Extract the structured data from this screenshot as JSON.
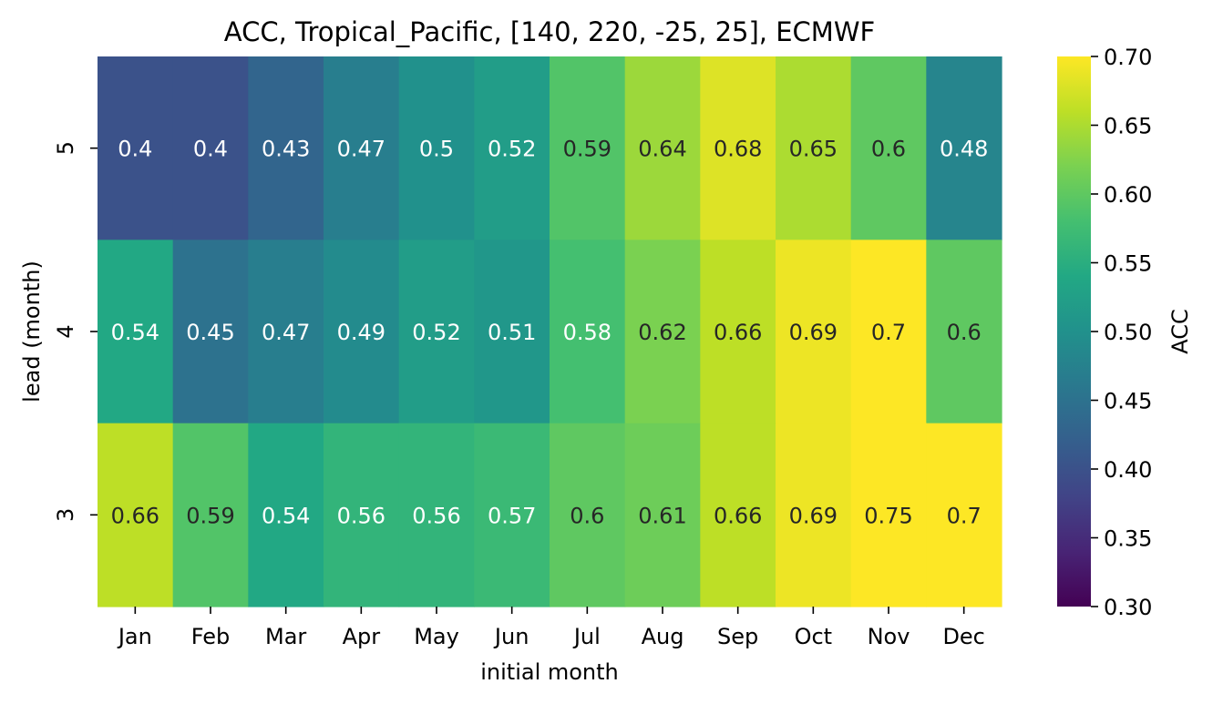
{
  "chart_data": {
    "type": "heatmap",
    "title": "ACC, Tropical_Pacific, [140, 220, -25, 25], ECMWF",
    "xlabel": "initial month",
    "ylabel": "lead (month)",
    "x_categories": [
      "Jan",
      "Feb",
      "Mar",
      "Apr",
      "May",
      "Jun",
      "Jul",
      "Aug",
      "Sep",
      "Oct",
      "Nov",
      "Dec"
    ],
    "y_categories": [
      "5",
      "4",
      "3"
    ],
    "values": [
      [
        0.4,
        0.4,
        0.43,
        0.47,
        0.5,
        0.52,
        0.59,
        0.64,
        0.68,
        0.65,
        0.6,
        0.48
      ],
      [
        0.54,
        0.45,
        0.47,
        0.49,
        0.52,
        0.51,
        0.58,
        0.62,
        0.66,
        0.69,
        0.7,
        0.6
      ],
      [
        0.66,
        0.59,
        0.54,
        0.56,
        0.56,
        0.57,
        0.6,
        0.61,
        0.66,
        0.69,
        0.75,
        0.7
      ]
    ],
    "colorbar": {
      "label": "ACC",
      "colormap": "viridis",
      "range": [
        0.3,
        0.7
      ],
      "ticks": [
        "0.30",
        "0.35",
        "0.40",
        "0.45",
        "0.50",
        "0.55",
        "0.60",
        "0.65",
        "0.70"
      ]
    }
  }
}
